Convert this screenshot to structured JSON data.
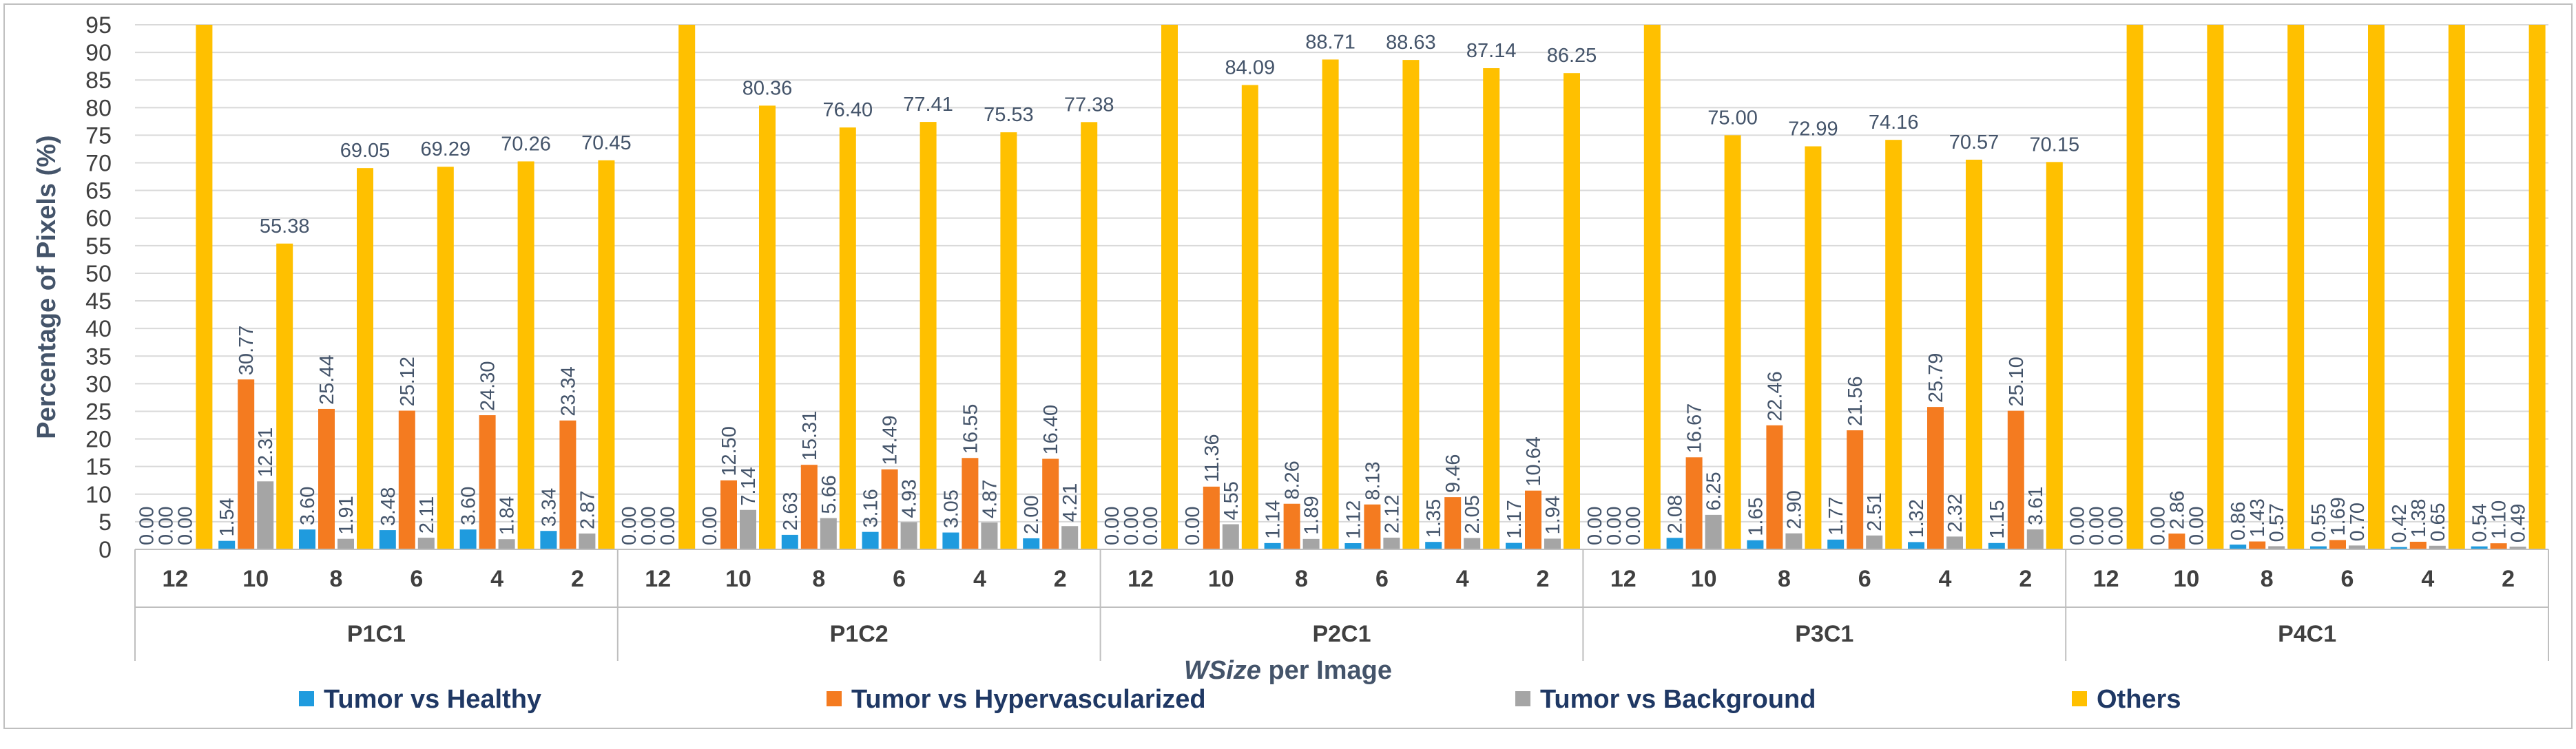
{
  "chart_data": {
    "type": "bar",
    "ylabel": "Percentage of Pixels (%)",
    "xlabel_italic": "WSize",
    "xlabel_rest": " per Image",
    "ylim": [
      0,
      95
    ],
    "yticks": [
      0,
      5,
      10,
      15,
      20,
      25,
      30,
      35,
      40,
      45,
      50,
      55,
      60,
      65,
      70,
      75,
      80,
      85,
      90,
      95
    ],
    "grid": true,
    "legend_position": "bottom",
    "groups": [
      "P1C1",
      "P1C2",
      "P2C1",
      "P3C1",
      "P4C1"
    ],
    "categories": [
      "12",
      "10",
      "8",
      "6",
      "4",
      "2"
    ],
    "series": [
      {
        "name": "Tumor vs Healthy",
        "color": "#1f9bde",
        "values": [
          [
            0.0,
            1.54,
            3.6,
            3.48,
            3.6,
            3.34
          ],
          [
            0.0,
            0.0,
            2.63,
            3.16,
            3.05,
            2.0
          ],
          [
            0.0,
            0.0,
            1.14,
            1.12,
            1.35,
            1.17
          ],
          [
            0.0,
            2.08,
            1.65,
            1.77,
            1.32,
            1.15
          ],
          [
            0.0,
            0.0,
            0.86,
            0.55,
            0.42,
            0.54
          ]
        ]
      },
      {
        "name": "Tumor vs Hypervascularized",
        "color": "#f47b20",
        "values": [
          [
            0.0,
            30.77,
            25.44,
            25.12,
            24.3,
            23.34
          ],
          [
            0.0,
            12.5,
            15.31,
            14.49,
            16.55,
            16.4
          ],
          [
            0.0,
            11.36,
            8.26,
            8.13,
            9.46,
            10.64
          ],
          [
            0.0,
            16.67,
            22.46,
            21.56,
            25.79,
            25.1
          ],
          [
            0.0,
            2.86,
            1.43,
            1.69,
            1.38,
            1.1
          ]
        ]
      },
      {
        "name": "Tumor vs Background",
        "color": "#a5a5a5",
        "values": [
          [
            0.0,
            12.31,
            1.91,
            2.11,
            1.84,
            2.87
          ],
          [
            0.0,
            7.14,
            5.66,
            4.93,
            4.87,
            4.21
          ],
          [
            0.0,
            4.55,
            1.89,
            2.12,
            2.05,
            1.94
          ],
          [
            0.0,
            6.25,
            2.9,
            2.51,
            2.32,
            3.61
          ],
          [
            0.0,
            0.0,
            0.57,
            0.7,
            0.65,
            0.49
          ]
        ]
      },
      {
        "name": "Others",
        "color": "#ffc000",
        "values": [
          [
            100,
            55.38,
            69.05,
            69.29,
            70.26,
            70.45
          ],
          [
            100,
            80.36,
            76.4,
            77.41,
            75.53,
            77.38
          ],
          [
            100,
            84.09,
            88.71,
            88.63,
            87.14,
            86.25
          ],
          [
            100,
            75.0,
            72.99,
            74.16,
            70.57,
            70.15
          ],
          [
            100,
            97.14,
            97.14,
            97.06,
            97.55,
            97.87
          ]
        ],
        "labels": [
          [
            "",
            "55.38",
            "69.05",
            "69.29",
            "70.26",
            "70.45"
          ],
          [
            "",
            "80.36",
            "76.40",
            "77.41",
            "75.53",
            "77.38"
          ],
          [
            "",
            "84.09",
            "88.71",
            "88.63",
            "87.14",
            "86.25"
          ],
          [
            "",
            "75.00",
            "72.99",
            "74.16",
            "70.57",
            "70.15"
          ],
          [
            "",
            "",
            "",
            "",
            "",
            ""
          ]
        ]
      }
    ]
  }
}
